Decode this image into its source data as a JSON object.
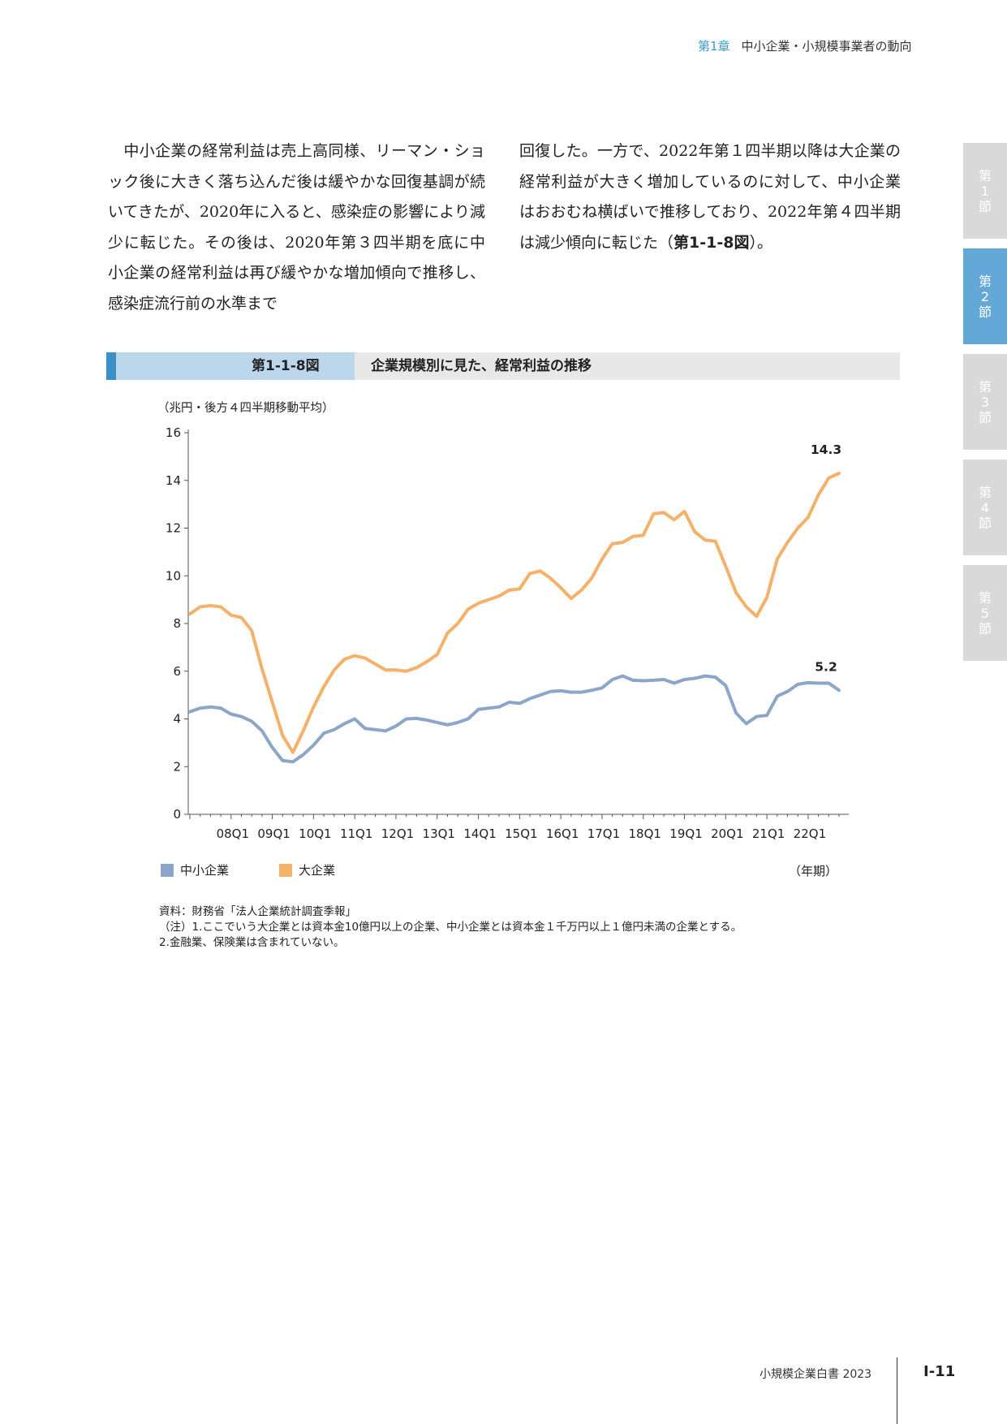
{
  "header": {
    "chapter": "第1章",
    "chapter_title": "中小企業・小規模事業者の動向"
  },
  "side_tabs": [
    {
      "label": [
        "第",
        "1",
        "節"
      ],
      "active": false
    },
    {
      "label": [
        "第",
        "2",
        "節"
      ],
      "active": true
    },
    {
      "label": [
        "第",
        "3",
        "節"
      ],
      "active": false
    },
    {
      "label": [
        "第",
        "4",
        "節"
      ],
      "active": false
    },
    {
      "label": [
        "第",
        "5",
        "節"
      ],
      "active": false
    }
  ],
  "body": {
    "left_paragraph": "中小企業の経常利益は売上高同様、リーマン・ショック後に大きく落ち込んだ後は緩やかな回復基調が続いてきたが、2020年に入ると、感染症の影響により減少に転じた。その後は、2020年第３四半期を底に中小企業の経常利益は再び緩やかな増加傾向で推移し、感染症流行前の水準まで",
    "right_paragraph": "回復した。一方で、2022年第１四半期以降は大企業の経常利益が大きく増加しているのに対して、中小企業はおおむね横ばいで推移しており、2022年第４四半期は減少傾向に転じた（",
    "right_ref": "第1-1-8図",
    "right_end": "）。"
  },
  "figure": {
    "number": "第1-1-8図",
    "title": "企業規模別に見た、経常利益の推移"
  },
  "chart_data": {
    "type": "line",
    "ylabel": "（兆円・後方４四半期移動平均）",
    "xlabel": "（年期）",
    "ylim": [
      0,
      16
    ],
    "yticks": [
      0,
      2,
      4,
      6,
      8,
      10,
      12,
      14,
      16
    ],
    "x_tick_labels": [
      "08Q1",
      "09Q1",
      "10Q1",
      "11Q1",
      "12Q1",
      "13Q1",
      "14Q1",
      "15Q1",
      "16Q1",
      "17Q1",
      "18Q1",
      "19Q1",
      "20Q1",
      "21Q1",
      "22Q1"
    ],
    "x_start": "07Q1",
    "x_end": "22Q4",
    "series": [
      {
        "name": "中小企業",
        "color": "#8aa6c8",
        "end_label": "5.2",
        "values": [
          4.3,
          4.45,
          4.5,
          4.45,
          4.2,
          4.1,
          3.9,
          3.5,
          2.8,
          2.25,
          2.2,
          2.5,
          2.9,
          3.4,
          3.55,
          3.8,
          4.0,
          3.6,
          3.55,
          3.5,
          3.7,
          4.0,
          4.02,
          3.95,
          3.85,
          3.75,
          3.85,
          4.0,
          4.4,
          4.45,
          4.5,
          4.7,
          4.65,
          4.85,
          5.0,
          5.15,
          5.18,
          5.12,
          5.12,
          5.2,
          5.3,
          5.65,
          5.8,
          5.62,
          5.6,
          5.62,
          5.65,
          5.5,
          5.65,
          5.7,
          5.8,
          5.75,
          5.4,
          4.25,
          3.8,
          4.1,
          4.15,
          4.95,
          5.15,
          5.45,
          5.52,
          5.5,
          5.5,
          5.2
        ]
      },
      {
        "name": "大企業",
        "color": "#f5b06a",
        "end_label": "14.3",
        "values": [
          8.4,
          8.7,
          8.75,
          8.7,
          8.35,
          8.25,
          7.7,
          6.1,
          4.7,
          3.3,
          2.6,
          3.5,
          4.5,
          5.35,
          6.05,
          6.5,
          6.65,
          6.55,
          6.3,
          6.05,
          6.05,
          6.0,
          6.15,
          6.4,
          6.7,
          7.6,
          8.0,
          8.6,
          8.85,
          9.0,
          9.15,
          9.4,
          9.45,
          10.1,
          10.2,
          9.9,
          9.5,
          9.05,
          9.4,
          9.9,
          10.7,
          11.35,
          11.4,
          11.65,
          11.7,
          12.6,
          12.65,
          12.35,
          12.7,
          11.85,
          11.5,
          11.45,
          10.4,
          9.3,
          8.7,
          8.3,
          9.1,
          10.7,
          11.4,
          12.0,
          12.45,
          13.4,
          14.1,
          14.3
        ]
      }
    ]
  },
  "legend": [
    {
      "label": "中小企業",
      "color": "#8aa6c8"
    },
    {
      "label": "大企業",
      "color": "#f5b06a"
    }
  ],
  "notes": {
    "source": "資料：財務省「法人企業統計調査季報」",
    "note1": "（注）1.ここでいう大企業とは資本金10億円以上の企業、中小企業とは資本金１千万円以上１億円未満の企業とする。",
    "note2": "2.金融業、保険業は含まれていない。"
  },
  "footer": {
    "book": "小規模企業白書  2023",
    "page": "Ⅰ-11"
  }
}
